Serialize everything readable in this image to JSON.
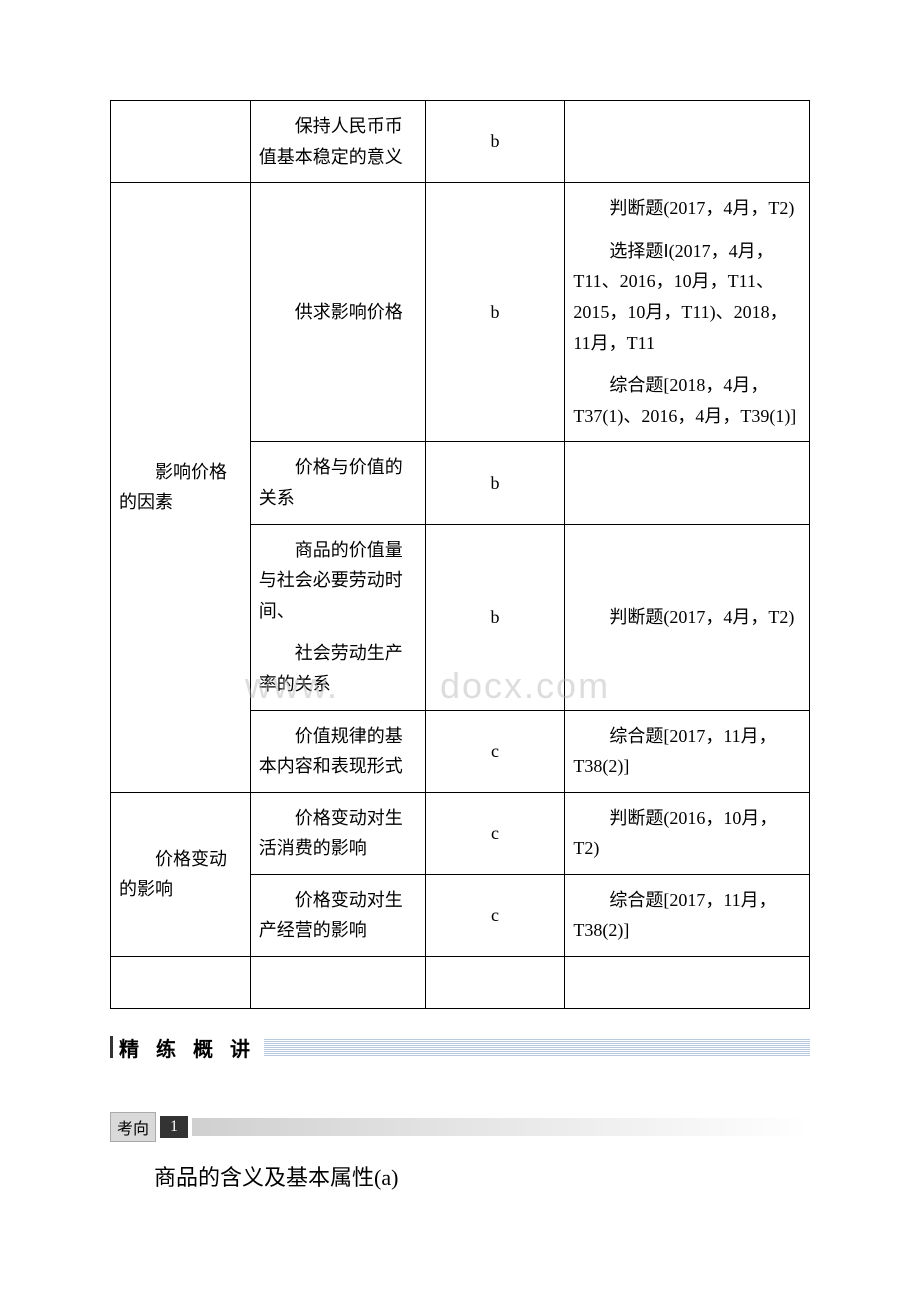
{
  "table": {
    "rows": [
      {
        "col1": "",
        "col2": "　　保持人民币币值基本稳定的意义",
        "col3": "b",
        "col4": ""
      },
      {
        "col1": "　　影响价格的因素",
        "col1_rowspan": 4,
        "col2": "　　供求影响价格",
        "col3": "b",
        "col4_paras": [
          "　　判断题(2017，4月，T2)",
          "　　选择题Ⅰ(2017，4月，T11、2016，10月，T11、2015，10月，T11)、2018，11月，T11",
          "　　综合题[2018，4月，T37(1)、2016，4月，T39(1)]"
        ]
      },
      {
        "col2": "　　价格与价值的关系",
        "col3": "b",
        "col4": ""
      },
      {
        "col2_paras": [
          "　　商品的价值量与社会必要劳动时间、",
          "　　社会劳动生产率的关系"
        ],
        "col3": "b",
        "col4": "　　判断题(2017，4月，T2)"
      },
      {
        "col2": "　　价值规律的基本内容和表现形式",
        "col3": "c",
        "col4": "　　综合题[2017，11月，T38(2)]"
      },
      {
        "col1": "　　价格变动的影响",
        "col1_rowspan": 2,
        "col2": "　　价格变动对生活消费的影响",
        "col3": "c",
        "col4": "　　判断题(2016，10月，T2)"
      },
      {
        "col2": "　　价格变动对生产经营的影响",
        "col3": "c",
        "col4": "　　综合题[2017，11月，T38(2)]"
      },
      {
        "col1": "",
        "col2": "",
        "col3": "",
        "col4": "",
        "empty_row": true
      }
    ]
  },
  "section_title": "精 练 概 讲",
  "kaoxiang_label": "考向",
  "kaoxiang_num": "1",
  "bottom_text": "商品的含义及基本属性(a)",
  "watermark_left": "www.",
  "watermark_right": "docx.com"
}
